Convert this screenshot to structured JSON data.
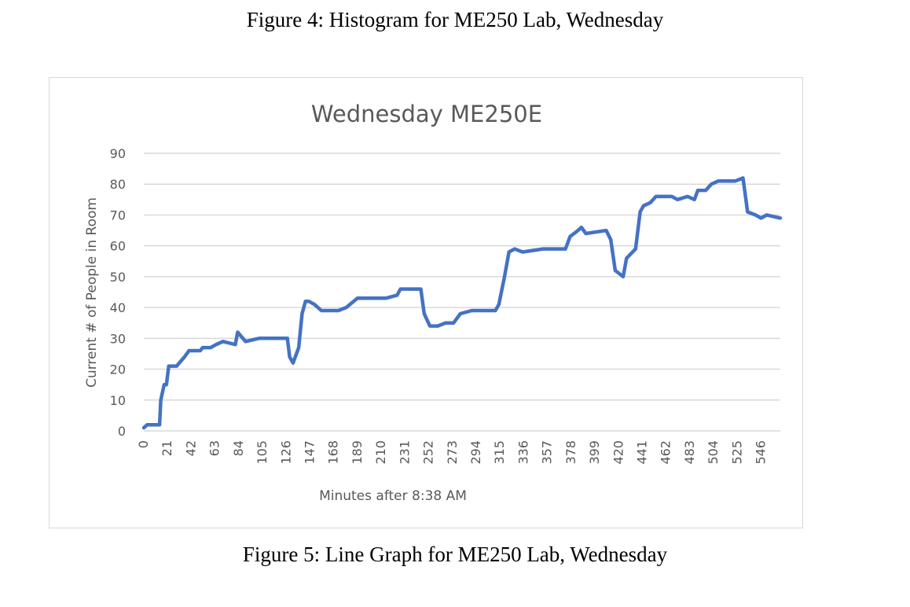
{
  "figure_captions": {
    "top": "Figure 4: Histogram for ME250 Lab, Wednesday",
    "bottom": "Figure 5: Line Graph for ME250 Lab, Wednesday"
  },
  "chart_data": {
    "type": "line",
    "title": "Wednesday ME250E",
    "xlabel": "Minutes after 8:38 AM",
    "ylabel": "Current # of People in Room",
    "ylim": [
      0,
      90
    ],
    "xlim": [
      0,
      563
    ],
    "yticks": [
      0,
      10,
      20,
      30,
      40,
      50,
      60,
      70,
      80,
      90
    ],
    "xticks": [
      0,
      21,
      42,
      63,
      84,
      105,
      126,
      147,
      168,
      189,
      210,
      231,
      252,
      273,
      294,
      315,
      336,
      357,
      378,
      399,
      420,
      441,
      462,
      483,
      504,
      525,
      546
    ],
    "grid": true,
    "line_color": "#4472c4",
    "series": [
      {
        "x": [
          0,
          3,
          14,
          15,
          18,
          20,
          22,
          29,
          36,
          40,
          50,
          52,
          59,
          64,
          70,
          81,
          83,
          90,
          102,
          113,
          121,
          127,
          129,
          132,
          137,
          140,
          143,
          146,
          151,
          157,
          172,
          179,
          189,
          202,
          214,
          224,
          227,
          245,
          248,
          253,
          260,
          267,
          274,
          280,
          290,
          311,
          314,
          319,
          323,
          328,
          335,
          353,
          373,
          377,
          384,
          387,
          391,
          409,
          413,
          417,
          424,
          427,
          435,
          439,
          442,
          448,
          453,
          467,
          472,
          481,
          487,
          490,
          497,
          502,
          508,
          523,
          530,
          534,
          541,
          546,
          551,
          563
        ],
        "y": [
          1,
          2,
          2,
          10,
          15,
          15,
          21,
          21,
          24,
          26,
          26,
          27,
          27,
          28,
          29,
          28,
          32,
          29,
          30,
          30,
          30,
          30,
          24,
          22,
          27,
          38,
          42,
          42,
          41,
          39,
          39,
          40,
          43,
          43,
          43,
          44,
          46,
          46,
          38,
          34,
          34,
          35,
          35,
          38,
          39,
          39,
          41,
          50,
          58,
          59,
          58,
          59,
          59,
          63,
          65,
          66,
          64,
          65,
          62,
          52,
          50,
          56,
          59,
          71,
          73,
          74,
          76,
          76,
          75,
          76,
          75,
          78,
          78,
          80,
          81,
          81,
          82,
          71,
          70,
          69,
          70,
          69
        ]
      }
    ]
  }
}
